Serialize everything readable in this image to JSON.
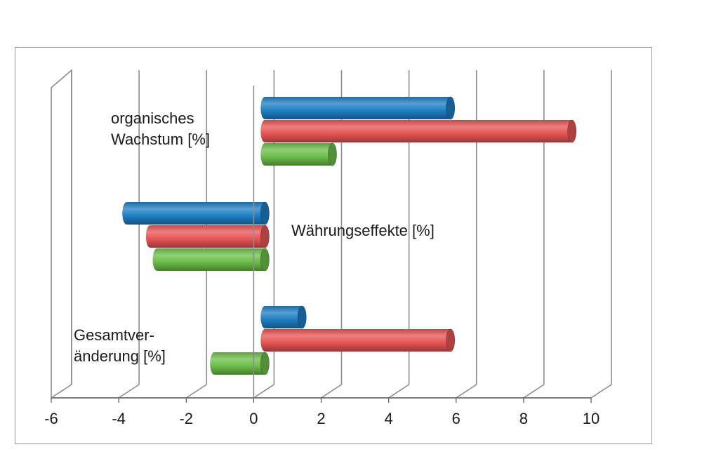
{
  "chart_data": {
    "type": "bar",
    "orientation": "horizontal",
    "categories": [
      [
        "organisches",
        "Wachstum [%]"
      ],
      [
        "Währungseffekte [%]"
      ],
      [
        "Gesamtver-",
        "änderung [%]"
      ]
    ],
    "series": [
      {
        "color": "#1f7fc4",
        "values": [
          5.5,
          -4.1,
          1.1
        ]
      },
      {
        "color": "#e85555",
        "values": [
          9.1,
          -3.4,
          5.5
        ]
      },
      {
        "color": "#6cbf4a",
        "values": [
          2.0,
          -3.2,
          -1.5
        ]
      }
    ],
    "xlim": [
      -6,
      10
    ],
    "xticks": [
      "-6",
      "-4",
      "-2",
      "0",
      "2",
      "4",
      "6",
      "8",
      "10"
    ],
    "grid": true,
    "style": "3d-cylinder"
  }
}
